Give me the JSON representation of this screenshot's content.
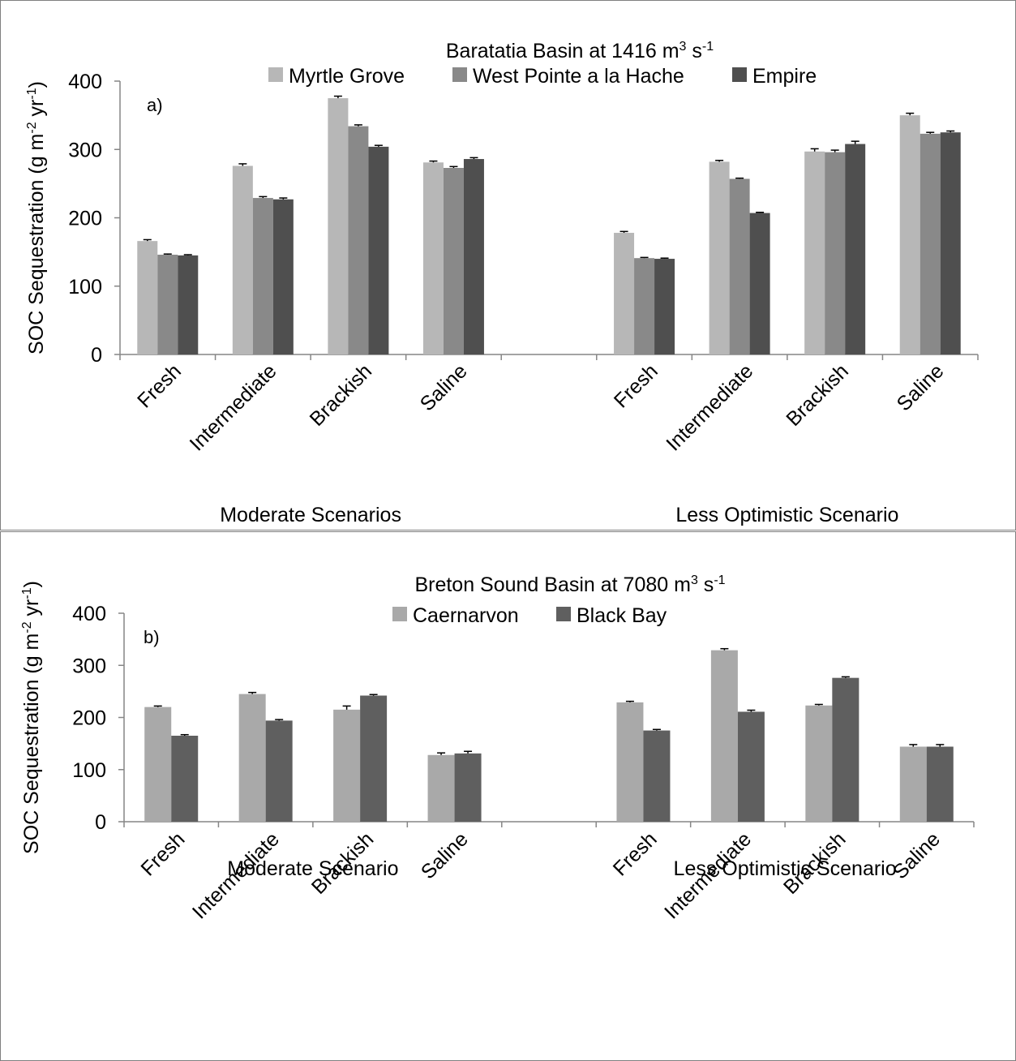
{
  "chart_data": [
    {
      "type": "bar",
      "panel_label": "a)",
      "title_text": "Baratatia  Basin  at 1416 m",
      "title_sup": "3",
      "title_mid": " s",
      "title_sup2": "-1",
      "ylabel": "SOC Sequestration (g m-2 yr-1)",
      "ylabel_parts": [
        "SOC Sequestration (g m",
        "-2",
        " yr",
        "-1",
        ")"
      ],
      "ylim": [
        0,
        400
      ],
      "yticks": [
        0,
        100,
        200,
        300,
        400
      ],
      "legend_position": "top",
      "grid": false,
      "groups": [
        {
          "label": "Moderate Scenarios",
          "categories": [
            "Fresh",
            "Intermediate",
            "Brackish",
            "Saline"
          ]
        },
        {
          "label": "Less Optimistic Scenario",
          "categories": [
            "Fresh",
            "Intermediate",
            "Brackish",
            "Saline"
          ]
        }
      ],
      "series": [
        {
          "name": "Myrtle Grove",
          "color": "#b7b7b7",
          "values": [
            166,
            276,
            375,
            281,
            178,
            282,
            297,
            350
          ],
          "errors": [
            2,
            3,
            3,
            2,
            2,
            2,
            4,
            3
          ]
        },
        {
          "name": "West Pointe a la Hache",
          "color": "#898989",
          "values": [
            146,
            229,
            334,
            273,
            141,
            257,
            296,
            323
          ],
          "errors": [
            1,
            2,
            2,
            2,
            1,
            1,
            3,
            2
          ]
        },
        {
          "name": "Empire",
          "color": "#4f4f4f",
          "values": [
            145,
            227,
            304,
            286,
            140,
            207,
            308,
            325
          ],
          "errors": [
            1,
            2,
            2,
            2,
            1,
            1,
            4,
            2
          ]
        }
      ]
    },
    {
      "type": "bar",
      "panel_label": "b)",
      "title_text": "Breton  Sound Basin at 7080 m",
      "title_sup": "3",
      "title_mid": " s",
      "title_sup2": "-1",
      "ylabel": "SOC Sequestration (g m-2 yr-1)",
      "ylabel_parts": [
        "SOC Sequestration (g m",
        "-2",
        " yr",
        "-1",
        ")"
      ],
      "ylim": [
        0,
        400
      ],
      "yticks": [
        0,
        100,
        200,
        300,
        400
      ],
      "legend_position": "top",
      "grid": false,
      "groups": [
        {
          "label": "Moderate Scenario",
          "categories": [
            "Fresh",
            "Intermediate",
            "Brackish",
            "Saline"
          ]
        },
        {
          "label": "Less Optimistic Scenario",
          "categories": [
            "Fresh",
            "Intermediate",
            "Brackish",
            "Saline"
          ]
        }
      ],
      "series": [
        {
          "name": "Caernarvon",
          "color": "#a9a9a9",
          "values": [
            220,
            245,
            215,
            128,
            229,
            329,
            223,
            144
          ],
          "errors": [
            2,
            3,
            7,
            4,
            2,
            3,
            2,
            4
          ]
        },
        {
          "name": "Black Bay",
          "color": "#5f5f5f",
          "values": [
            165,
            194,
            242,
            131,
            175,
            211,
            276,
            144
          ],
          "errors": [
            2,
            2,
            2,
            4,
            2,
            3,
            2,
            4
          ]
        }
      ]
    }
  ]
}
